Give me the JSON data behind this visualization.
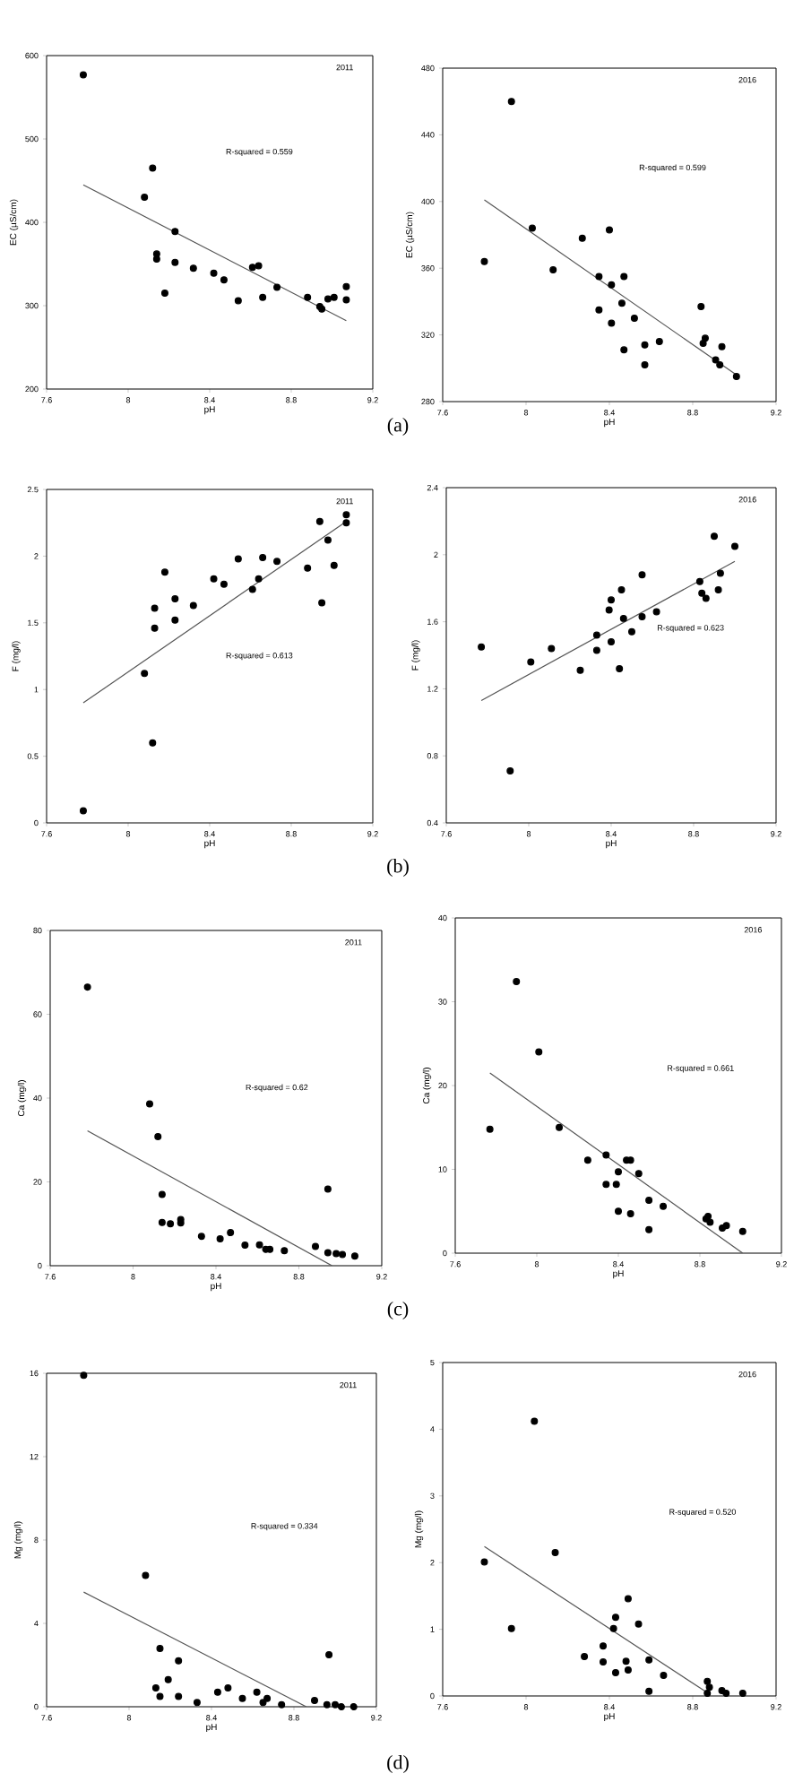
{
  "chart_data": [
    {
      "type": "scatter",
      "title": "2011",
      "xlabel": "pH",
      "ylabel": "EC (µS/cm)",
      "annotations": [
        "R-squared = 0.559",
        "(a)"
      ],
      "xlim": [
        7.6,
        9.2
      ],
      "ylim": [
        200,
        600
      ],
      "xticks": [
        7.6,
        8,
        8.4,
        8.8,
        9.2
      ],
      "yticks": [
        200,
        300,
        400,
        500,
        600
      ],
      "series": [
        {
          "marker": "circle",
          "color": "#000000",
          "x": [
            7.78,
            8.08,
            8.12,
            8.14,
            8.14,
            8.18,
            8.23,
            8.23,
            8.32,
            8.42,
            8.47,
            8.54,
            8.61,
            8.64,
            8.66,
            8.73,
            8.88,
            8.94,
            8.95,
            8.98,
            9.01,
            9.07,
            9.07
          ],
          "values": [
            577,
            430,
            465,
            362,
            356,
            315,
            389,
            352,
            345,
            339,
            331,
            306,
            346,
            348,
            310,
            322,
            310,
            299,
            296,
            308,
            310,
            323,
            307
          ]
        },
        {
          "type": "line",
          "marker": "none",
          "color": "#555555",
          "x": [
            7.78,
            9.07
          ],
          "values": [
            445,
            282
          ]
        }
      ]
    },
    {
      "type": "scatter",
      "title": "2016",
      "xlabel": "pH",
      "ylabel": "EC (µS/cm)",
      "annotations": [
        "R-squared = 0.599"
      ],
      "xlim": [
        7.6,
        9.2
      ],
      "ylim": [
        280,
        480
      ],
      "xticks": [
        7.6,
        8,
        8.4,
        8.8,
        9.2
      ],
      "yticks": [
        280,
        320,
        360,
        400,
        440,
        480
      ],
      "series": [
        {
          "marker": "circle",
          "color": "#000000",
          "x": [
            7.8,
            7.93,
            8.03,
            8.13,
            8.27,
            8.35,
            8.35,
            8.4,
            8.41,
            8.41,
            8.46,
            8.47,
            8.47,
            8.52,
            8.57,
            8.57,
            8.64,
            8.84,
            8.85,
            8.86,
            8.91,
            8.93,
            8.94,
            9.01
          ],
          "values": [
            364,
            460,
            384,
            359,
            378,
            355,
            335,
            383,
            350,
            327,
            339,
            355,
            311,
            330,
            314,
            302,
            316,
            337,
            315,
            318,
            305,
            302,
            313,
            295
          ]
        },
        {
          "type": "line",
          "marker": "none",
          "color": "#555555",
          "x": [
            7.8,
            9.01
          ],
          "values": [
            401,
            296
          ]
        }
      ]
    },
    {
      "type": "scatter",
      "title": "2011",
      "xlabel": "pH",
      "ylabel": "F (mg/l)",
      "annotations": [
        "R-squared = 0.613",
        "(b)"
      ],
      "xlim": [
        7.6,
        9.2
      ],
      "ylim": [
        0,
        2.5
      ],
      "xticks": [
        7.6,
        8,
        8.4,
        8.8,
        9.2
      ],
      "yticks": [
        0,
        0.5,
        1,
        1.5,
        2,
        2.5
      ],
      "series": [
        {
          "marker": "circle",
          "color": "#000000",
          "x": [
            7.78,
            8.08,
            8.12,
            8.13,
            8.13,
            8.18,
            8.23,
            8.23,
            8.32,
            8.42,
            8.47,
            8.54,
            8.61,
            8.64,
            8.66,
            8.73,
            8.88,
            8.94,
            8.95,
            8.98,
            9.01,
            9.07,
            9.07
          ],
          "values": [
            0.09,
            1.12,
            0.6,
            1.61,
            1.46,
            1.88,
            1.68,
            1.52,
            1.63,
            1.83,
            1.79,
            1.98,
            1.75,
            1.83,
            1.99,
            1.96,
            1.91,
            2.26,
            1.65,
            2.12,
            1.93,
            2.31,
            2.25
          ]
        },
        {
          "type": "line",
          "marker": "none",
          "color": "#555555",
          "x": [
            7.78,
            9.07
          ],
          "values": [
            0.9,
            2.26
          ]
        }
      ]
    },
    {
      "type": "scatter",
      "title": "2016",
      "xlabel": "pH",
      "ylabel": "F (mg/l)",
      "annotations": [
        "R-squared = 0.623"
      ],
      "xlim": [
        7.6,
        9.2
      ],
      "ylim": [
        0.4,
        2.4
      ],
      "xticks": [
        7.6,
        8,
        8.4,
        8.8,
        9.2
      ],
      "yticks": [
        0.4,
        0.8,
        1.2,
        1.6,
        2,
        2.4
      ],
      "series": [
        {
          "marker": "circle",
          "color": "#000000",
          "x": [
            7.77,
            7.91,
            8.01,
            8.11,
            8.25,
            8.33,
            8.33,
            8.39,
            8.4,
            8.4,
            8.44,
            8.45,
            8.46,
            8.5,
            8.55,
            8.55,
            8.62,
            8.83,
            8.84,
            8.86,
            8.9,
            8.92,
            8.93,
            9.0
          ],
          "values": [
            1.45,
            0.71,
            1.36,
            1.44,
            1.31,
            1.52,
            1.43,
            1.67,
            1.73,
            1.48,
            1.32,
            1.79,
            1.62,
            1.54,
            1.88,
            1.63,
            1.66,
            1.84,
            1.77,
            1.74,
            2.11,
            1.79,
            1.89,
            2.05
          ]
        },
        {
          "type": "line",
          "marker": "none",
          "color": "#555555",
          "x": [
            7.77,
            9.0
          ],
          "values": [
            1.13,
            1.96
          ]
        }
      ]
    },
    {
      "type": "scatter",
      "title": "2011",
      "xlabel": "pH",
      "ylabel": "Ca (mg/l)",
      "annotations": [
        "R-squared = 0.62",
        "(c)"
      ],
      "xlim": [
        7.6,
        9.2
      ],
      "ylim": [
        0,
        80
      ],
      "xticks": [
        7.6,
        8,
        8.4,
        8.8,
        9.2
      ],
      "yticks": [
        0,
        20,
        40,
        60,
        80
      ],
      "series": [
        {
          "marker": "circle",
          "color": "#000000",
          "x": [
            7.78,
            8.08,
            8.12,
            8.14,
            8.14,
            8.18,
            8.23,
            8.23,
            8.33,
            8.42,
            8.47,
            8.54,
            8.61,
            8.64,
            8.66,
            8.73,
            8.88,
            8.94,
            8.94,
            8.98,
            9.01,
            9.07
          ],
          "values": [
            66.5,
            38.6,
            30.8,
            17.0,
            10.3,
            10.0,
            11.0,
            10.2,
            7.0,
            6.4,
            7.9,
            4.9,
            5.0,
            3.9,
            3.9,
            3.6,
            4.6,
            18.3,
            3.1,
            2.9,
            2.7,
            2.3
          ]
        },
        {
          "type": "line",
          "marker": "none",
          "color": "#555555",
          "x": [
            7.78,
            8.96
          ],
          "values": [
            32.2,
            0
          ]
        }
      ]
    },
    {
      "type": "scatter",
      "title": "2016",
      "xlabel": "pH",
      "ylabel": "Ca (mg/l)",
      "annotations": [
        "R-squared = 0.661"
      ],
      "xlim": [
        7.6,
        9.2
      ],
      "ylim": [
        0,
        40
      ],
      "xticks": [
        7.6,
        8,
        8.4,
        8.8,
        9.2
      ],
      "yticks": [
        0,
        10,
        20,
        30,
        40
      ],
      "series": [
        {
          "marker": "circle",
          "color": "#000000",
          "x": [
            7.77,
            7.9,
            8.01,
            8.11,
            8.25,
            8.34,
            8.34,
            8.39,
            8.4,
            8.4,
            8.44,
            8.46,
            8.46,
            8.5,
            8.55,
            8.55,
            8.62,
            8.83,
            8.84,
            8.85,
            8.91,
            8.93,
            9.01
          ],
          "values": [
            14.8,
            32.4,
            24.0,
            15.0,
            11.1,
            11.7,
            8.2,
            8.2,
            9.7,
            5.0,
            11.1,
            11.1,
            4.7,
            9.5,
            6.3,
            2.8,
            5.6,
            4.1,
            4.4,
            3.7,
            3.0,
            3.3,
            2.6
          ]
        },
        {
          "type": "line",
          "marker": "none",
          "color": "#555555",
          "x": [
            7.77,
            9.01
          ],
          "values": [
            21.5,
            0
          ]
        }
      ]
    },
    {
      "type": "scatter",
      "title": "2011",
      "xlabel": "pH",
      "ylabel": "Mg (mg/l)",
      "annotations": [
        "R-squared = 0.334",
        "(d)"
      ],
      "xlim": [
        7.6,
        9.2
      ],
      "ylim": [
        0,
        16
      ],
      "xticks": [
        7.6,
        8,
        8.4,
        8.8,
        9.2
      ],
      "yticks": [
        0,
        4,
        8,
        12,
        16
      ],
      "series": [
        {
          "marker": "circle",
          "color": "#000000",
          "x": [
            7.78,
            8.08,
            8.13,
            8.15,
            8.15,
            8.19,
            8.24,
            8.24,
            8.33,
            8.43,
            8.48,
            8.55,
            8.62,
            8.65,
            8.67,
            8.74,
            8.9,
            8.96,
            8.97,
            9.0,
            9.03,
            9.09
          ],
          "values": [
            15.9,
            6.3,
            0.9,
            2.8,
            0.5,
            1.3,
            2.2,
            0.5,
            0.2,
            0.7,
            0.9,
            0.4,
            0.7,
            0.2,
            0.4,
            0.1,
            0.3,
            0.1,
            2.5,
            0.1,
            0.0,
            0.0
          ]
        },
        {
          "type": "line",
          "marker": "none",
          "color": "#555555",
          "x": [
            7.78,
            8.86
          ],
          "values": [
            5.5,
            0
          ]
        }
      ]
    },
    {
      "type": "scatter",
      "title": "2016",
      "xlabel": "pH",
      "ylabel": "Mg (mg/l)",
      "annotations": [
        "R-squared = 0.520"
      ],
      "xlim": [
        7.6,
        9.2
      ],
      "ylim": [
        0,
        5
      ],
      "xticks": [
        7.6,
        8,
        8.4,
        8.8,
        9.2
      ],
      "yticks": [
        0,
        1,
        2,
        3,
        4,
        5
      ],
      "series": [
        {
          "marker": "circle",
          "color": "#000000",
          "x": [
            7.8,
            7.93,
            8.04,
            8.14,
            8.28,
            8.37,
            8.37,
            8.42,
            8.43,
            8.43,
            8.48,
            8.49,
            8.49,
            8.54,
            8.59,
            8.59,
            8.66,
            8.87,
            8.87,
            8.88,
            8.94,
            8.96,
            9.04
          ],
          "values": [
            2.01,
            1.01,
            4.12,
            2.15,
            0.59,
            0.75,
            0.51,
            1.01,
            1.18,
            0.35,
            0.52,
            1.46,
            0.39,
            1.08,
            0.54,
            0.07,
            0.31,
            0.04,
            0.22,
            0.13,
            0.08,
            0.04,
            0.04
          ]
        },
        {
          "type": "line",
          "marker": "none",
          "color": "#555555",
          "x": [
            7.8,
            8.86
          ],
          "values": [
            2.24,
            0.07
          ]
        }
      ]
    }
  ]
}
